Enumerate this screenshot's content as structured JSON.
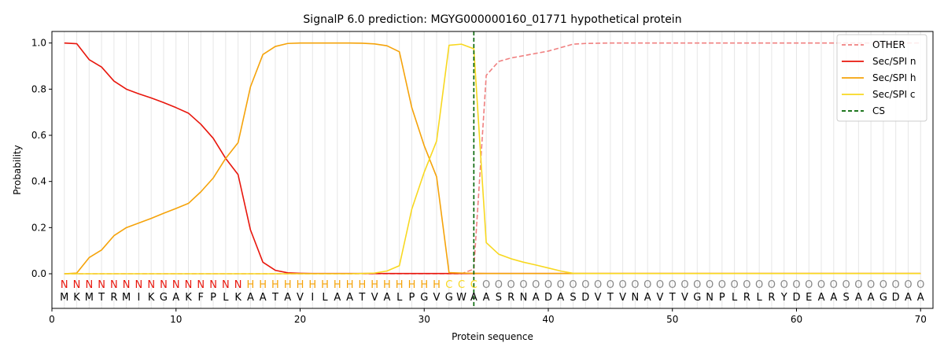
{
  "chart_data": {
    "type": "line",
    "title": "SignalP 6.0 prediction: MGYG000000160_01771 hypothetical protein",
    "xlabel": "Protein sequence",
    "ylabel": "Probability",
    "xlim": [
      0,
      71
    ],
    "ylim": [
      -0.15,
      1.05
    ],
    "xticks": [
      0,
      10,
      20,
      30,
      40,
      50,
      60,
      70
    ],
    "yticks": [
      0.0,
      0.2,
      0.4,
      0.6,
      0.8,
      1.0
    ],
    "ytick_labels": [
      "0.0",
      "0.2",
      "0.4",
      "0.6",
      "0.8",
      "1.0"
    ],
    "grid": "vertical lines at each residue",
    "legend_position": "top-right",
    "x": [
      1,
      2,
      3,
      4,
      5,
      6,
      7,
      8,
      9,
      10,
      11,
      12,
      13,
      14,
      15,
      16,
      17,
      18,
      19,
      20,
      21,
      22,
      23,
      24,
      25,
      26,
      27,
      28,
      29,
      30,
      31,
      32,
      33,
      34,
      35,
      36,
      37,
      38,
      39,
      40,
      41,
      42,
      43,
      44,
      45,
      46,
      47,
      48,
      49,
      50,
      51,
      52,
      53,
      54,
      55,
      56,
      57,
      58,
      59,
      60,
      61,
      62,
      63,
      64,
      65,
      66,
      67,
      68,
      69,
      70
    ],
    "series": [
      {
        "name": "OTHER",
        "color": "#f08080",
        "dash": "dashed",
        "values": [
          0,
          0,
          0,
          0,
          0,
          0,
          0,
          0,
          0,
          0,
          0,
          0,
          0,
          0,
          0,
          0,
          0,
          0,
          0,
          0,
          0,
          0,
          0,
          0,
          0,
          0,
          0,
          0,
          0,
          0,
          0,
          0,
          0,
          0.02,
          0.86,
          0.92,
          0.935,
          0.945,
          0.955,
          0.965,
          0.98,
          0.995,
          0.998,
          0.999,
          1,
          1,
          1,
          1,
          1,
          1,
          1,
          1,
          1,
          1,
          1,
          1,
          1,
          1,
          1,
          1,
          1,
          1,
          1,
          1,
          1,
          1,
          1,
          1,
          1,
          1
        ]
      },
      {
        "name": "Sec/SPI n",
        "color": "#e8160c",
        "dash": "solid",
        "values": [
          1.0,
          0.997,
          0.928,
          0.896,
          0.835,
          0.8,
          0.78,
          0.762,
          0.742,
          0.72,
          0.696,
          0.648,
          0.587,
          0.5,
          0.43,
          0.19,
          0.05,
          0.015,
          0.004,
          0.002,
          0.001,
          0.001,
          0.001,
          0.001,
          0.001,
          0.001,
          0.001,
          0.001,
          0.001,
          0.001,
          0.001,
          0.001,
          0.001,
          0.001,
          0.001,
          0.001,
          0.001,
          0.001,
          0.001,
          0.001,
          0.001,
          0.001,
          0.001,
          0.001,
          0.001,
          0.001,
          0.001,
          0.001,
          0.001,
          0.001,
          0.001,
          0.001,
          0.001,
          0.001,
          0.001,
          0.001,
          0.001,
          0.001,
          0.001,
          0.001,
          0.001,
          0.001,
          0.001,
          0.001,
          0.001,
          0.001,
          0.001,
          0.001,
          0.001,
          0.001
        ]
      },
      {
        "name": "Sec/SPI h",
        "color": "#f5a30a",
        "dash": "solid",
        "values": [
          0.0,
          0.003,
          0.07,
          0.103,
          0.165,
          0.2,
          0.22,
          0.24,
          0.262,
          0.283,
          0.305,
          0.355,
          0.415,
          0.5,
          0.568,
          0.81,
          0.95,
          0.985,
          0.998,
          1.0,
          1.0,
          1.0,
          1.0,
          1.0,
          0.999,
          0.996,
          0.988,
          0.962,
          0.72,
          0.555,
          0.42,
          0.005,
          0.003,
          0.002,
          0.001,
          0.001,
          0.001,
          0.001,
          0.001,
          0.001,
          0.001,
          0.001,
          0.001,
          0.001,
          0.001,
          0.001,
          0.001,
          0.001,
          0.001,
          0.001,
          0.001,
          0.001,
          0.001,
          0.001,
          0.001,
          0.001,
          0.001,
          0.001,
          0.001,
          0.001,
          0.001,
          0.001,
          0.001,
          0.001,
          0.001,
          0.001,
          0.001,
          0.001,
          0.001,
          0.001
        ]
      },
      {
        "name": "Sec/SPI c",
        "color": "#f8d820",
        "dash": "solid",
        "values": [
          0,
          0,
          0,
          0,
          0,
          0,
          0,
          0,
          0,
          0,
          0,
          0,
          0,
          0,
          0,
          0,
          0,
          0,
          0,
          0,
          0,
          0,
          0,
          0,
          0.001,
          0.003,
          0.012,
          0.035,
          0.28,
          0.44,
          0.575,
          0.99,
          0.995,
          0.975,
          0.135,
          0.085,
          0.065,
          0.05,
          0.038,
          0.025,
          0.012,
          0.002,
          0.001,
          0.001,
          0.001,
          0.001,
          0.001,
          0.001,
          0.001,
          0.001,
          0.001,
          0.001,
          0.001,
          0.001,
          0.001,
          0.001,
          0.001,
          0.001,
          0.001,
          0.001,
          0.001,
          0.001,
          0.001,
          0.001,
          0.001,
          0.001,
          0.001,
          0.001,
          0.001,
          0.001
        ]
      }
    ],
    "cleavage_site": {
      "name": "CS",
      "x": 34,
      "color": "#006400",
      "dash": "dashed"
    },
    "sequence": [
      "M",
      "K",
      "M",
      "T",
      "R",
      "M",
      "I",
      "K",
      "G",
      "A",
      "K",
      "F",
      "P",
      "L",
      "K",
      "A",
      "A",
      "T",
      "A",
      "V",
      "I",
      "L",
      "A",
      "A",
      "T",
      "V",
      "A",
      "L",
      "P",
      "G",
      "V",
      "G",
      "W",
      "A",
      "A",
      "S",
      "R",
      "N",
      "A",
      "D",
      "A",
      "S",
      "D",
      "V",
      "T",
      "V",
      "N",
      "A",
      "V",
      "T",
      "V",
      "G",
      "N",
      "P",
      "L",
      "R",
      "L",
      "R",
      "Y",
      "D",
      "E",
      "A",
      "A",
      "S",
      "A",
      "A",
      "G",
      "D",
      "A",
      "A"
    ],
    "region_labels": [
      "N",
      "N",
      "N",
      "N",
      "N",
      "N",
      "N",
      "N",
      "N",
      "N",
      "N",
      "N",
      "N",
      "N",
      "N",
      "H",
      "H",
      "H",
      "H",
      "H",
      "H",
      "H",
      "H",
      "H",
      "H",
      "H",
      "H",
      "H",
      "H",
      "H",
      "H",
      "C",
      "C",
      "C",
      "O",
      "O",
      "O",
      "O",
      "O",
      "O",
      "O",
      "O",
      "O",
      "O",
      "O",
      "O",
      "O",
      "O",
      "O",
      "O",
      "O",
      "O",
      "O",
      "O",
      "O",
      "O",
      "O",
      "O",
      "O",
      "O",
      "O",
      "O",
      "O",
      "O",
      "O",
      "O",
      "O",
      "O",
      "O",
      "O"
    ],
    "region_colors": {
      "N": "#e8160c",
      "H": "#f5a30a",
      "C": "#f8d820",
      "O": "#888888"
    }
  }
}
